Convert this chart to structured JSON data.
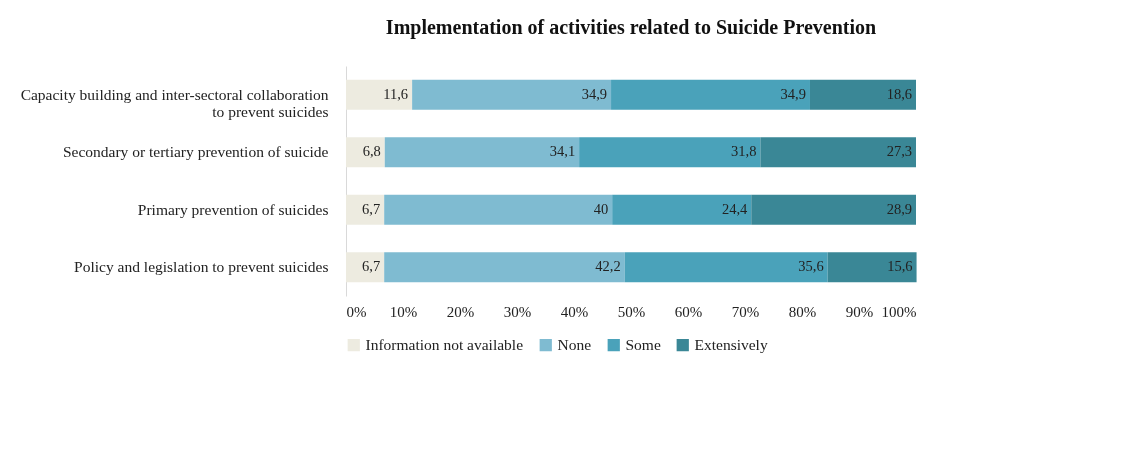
{
  "chart_data": {
    "type": "bar",
    "orientation": "horizontal",
    "stacked": true,
    "title": "Implementation of activities related to Suicide Prevention",
    "categories": [
      "Capacity building and inter-sectoral collaboration to prevent suicides",
      "Secondary or tertiary prevention of suicide",
      "Primary prevention of suicides",
      "Policy and legislation to prevent suicides"
    ],
    "series": [
      {
        "name": "Information not available",
        "color": "#edebe0",
        "values": [
          11.6,
          6.8,
          6.7,
          6.7
        ],
        "value_labels": [
          "11,6",
          "6,8",
          "6,7",
          "6,7"
        ]
      },
      {
        "name": "None",
        "color": "#7fbbd1",
        "values": [
          34.9,
          34.1,
          40,
          42.2
        ],
        "value_labels": [
          "34,9",
          "34,1",
          "40",
          "42,2"
        ]
      },
      {
        "name": "Some",
        "color": "#4aa2ba",
        "values": [
          34.9,
          31.8,
          24.4,
          35.6
        ],
        "value_labels": [
          "34,9",
          "31,8",
          "24,4",
          "35,6"
        ]
      },
      {
        "name": "Extensively",
        "color": "#3a8796",
        "values": [
          18.6,
          27.3,
          28.9,
          15.6
        ],
        "value_labels": [
          "18,6",
          "27,3",
          "28,9",
          "15,6"
        ]
      }
    ],
    "xlim": [
      0,
      100
    ],
    "xticks": [
      {
        "value": 0,
        "label": "0%"
      },
      {
        "value": 10,
        "label": "10%"
      },
      {
        "value": 20,
        "label": "20%"
      },
      {
        "value": 30,
        "label": "30%"
      },
      {
        "value": 40,
        "label": "40%"
      },
      {
        "value": 50,
        "label": "50%"
      },
      {
        "value": 60,
        "label": "60%"
      },
      {
        "value": 70,
        "label": "70%"
      },
      {
        "value": 80,
        "label": "80%"
      },
      {
        "value": 90,
        "label": "90%"
      },
      {
        "value": 100,
        "label": "100%"
      }
    ],
    "grid": false,
    "legend": "bottom"
  }
}
